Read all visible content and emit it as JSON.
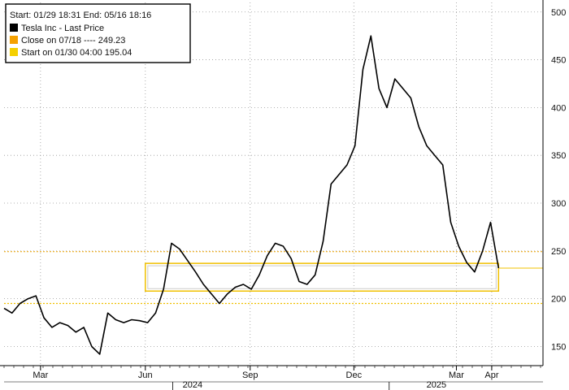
{
  "legend": {
    "header": "Start: 01/29 18:31 End: 05/16 18:16",
    "items": [
      {
        "label": "Tesla Inc - Last Price",
        "color": "#000000"
      },
      {
        "label": "Close on 07/18 ----    249.23",
        "color": "#f5a100"
      },
      {
        "label": "Start on 01/30 04:00   195.04",
        "color": "#f5d000"
      }
    ]
  },
  "colors": {
    "price_line": "#000000",
    "close_ref_line": "#f0a500",
    "start_ref_line": "#f0c000",
    "highlight_box": "#f0c000",
    "grid": "#999999"
  },
  "chart_data": {
    "type": "line",
    "title": "",
    "xlabel": "",
    "ylabel": "",
    "ylim": [
      130,
      510
    ],
    "yticks": [
      150,
      200,
      250,
      300,
      350,
      400,
      450,
      500
    ],
    "x_month_labels": [
      "Mar",
      "Jun",
      "Sep",
      "Dec",
      "Mar",
      "Apr"
    ],
    "x_year_labels": [
      "2024",
      "2025"
    ],
    "x_range": [
      "2024-01-29",
      "2025-05-16"
    ],
    "grid": "horizontal dotted",
    "legend_position": "top-left",
    "reference_lines": [
      {
        "name": "Close on 07/18",
        "value": 249.23
      },
      {
        "name": "Start on 01/30 04:00",
        "value": 195.04
      }
    ],
    "highlight_band": {
      "x_start": "2024-06-01",
      "x_end": "2025-04-07",
      "y_low": 208,
      "y_high": 237
    },
    "last_value_marker": 232,
    "series": [
      {
        "name": "Tesla Inc - Last Price",
        "x": [
          "2024-01-29",
          "2024-02-05",
          "2024-02-12",
          "2024-02-19",
          "2024-02-26",
          "2024-03-04",
          "2024-03-11",
          "2024-03-18",
          "2024-03-25",
          "2024-04-01",
          "2024-04-08",
          "2024-04-15",
          "2024-04-22",
          "2024-04-29",
          "2024-05-06",
          "2024-05-13",
          "2024-05-20",
          "2024-05-27",
          "2024-06-03",
          "2024-06-10",
          "2024-06-17",
          "2024-06-24",
          "2024-07-01",
          "2024-07-08",
          "2024-07-15",
          "2024-07-22",
          "2024-07-29",
          "2024-08-05",
          "2024-08-12",
          "2024-08-19",
          "2024-08-26",
          "2024-09-02",
          "2024-09-09",
          "2024-09-16",
          "2024-09-23",
          "2024-09-30",
          "2024-10-07",
          "2024-10-14",
          "2024-10-21",
          "2024-10-28",
          "2024-11-04",
          "2024-11-11",
          "2024-11-18",
          "2024-11-25",
          "2024-12-02",
          "2024-12-09",
          "2024-12-16",
          "2024-12-23",
          "2024-12-30",
          "2025-01-06",
          "2025-01-13",
          "2025-01-20",
          "2025-01-27",
          "2025-02-03",
          "2025-02-10",
          "2025-02-17",
          "2025-02-24",
          "2025-03-03",
          "2025-03-10",
          "2025-03-17",
          "2025-03-24",
          "2025-03-31",
          "2025-04-07"
        ],
        "y": [
          190,
          185,
          195,
          200,
          203,
          180,
          170,
          175,
          172,
          165,
          170,
          150,
          142,
          185,
          178,
          175,
          178,
          177,
          175,
          185,
          210,
          258,
          252,
          240,
          228,
          215,
          205,
          195,
          205,
          212,
          215,
          210,
          225,
          245,
          258,
          255,
          242,
          218,
          215,
          225,
          260,
          320,
          330,
          340,
          360,
          440,
          475,
          420,
          400,
          430,
          420,
          410,
          380,
          360,
          350,
          340,
          280,
          255,
          238,
          228,
          250,
          280,
          232
        ]
      }
    ]
  }
}
